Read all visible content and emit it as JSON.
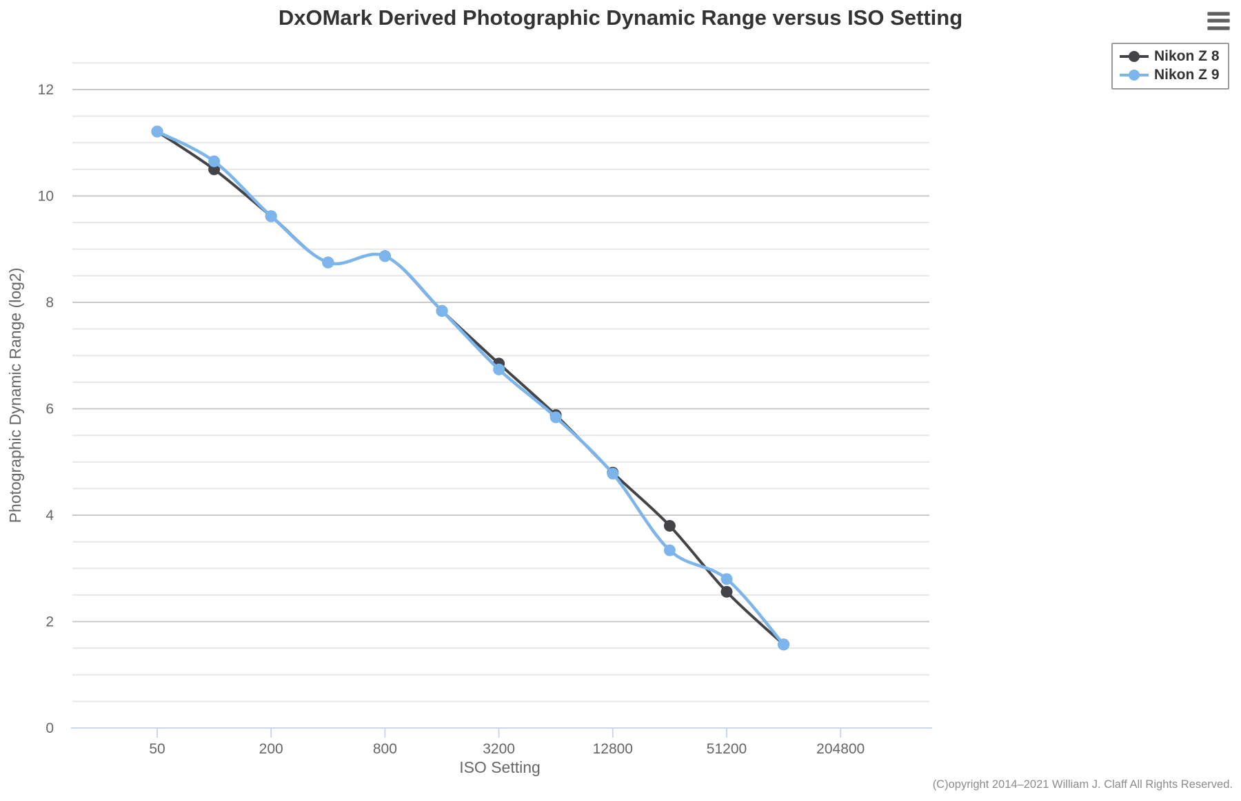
{
  "header": {
    "title": "DxOMark Derived Photographic Dynamic Range versus ISO Setting",
    "menu_icon": "hamburger-icon"
  },
  "chart_data": {
    "type": "line",
    "title": "DxOMark Derived Photographic Dynamic Range versus ISO Setting",
    "xlabel": "ISO Setting",
    "ylabel": "Photographic Dynamic Range (log2)",
    "x_scale": "log4",
    "x": [
      50,
      100,
      200,
      400,
      800,
      1600,
      3200,
      6400,
      12800,
      25600,
      51200,
      102400
    ],
    "series": [
      {
        "name": "Nikon Z 8",
        "color": "#434348",
        "values": [
          11.21,
          10.5,
          9.62,
          8.75,
          8.87,
          7.84,
          6.85,
          5.88,
          4.8,
          3.8,
          2.56,
          1.57
        ]
      },
      {
        "name": "Nikon Z 9",
        "color": "#7cb5ec",
        "values": [
          11.21,
          10.65,
          9.62,
          8.75,
          8.87,
          7.84,
          6.74,
          5.84,
          4.78,
          3.34,
          2.8,
          1.57
        ]
      }
    ],
    "x_ticks": [
      50,
      200,
      800,
      3200,
      12800,
      51200,
      204800
    ],
    "y_ticks": [
      0,
      2,
      4,
      6,
      8,
      10,
      12
    ],
    "ylim": [
      0,
      12.5
    ],
    "minor_grid_step": 0.5,
    "grid": "horizontal-only",
    "legend_position": "top-right",
    "curve": "spline",
    "axis_line_color": "#ccd6eb",
    "major_grid_color": "#c8c8c8",
    "minor_grid_color": "#e7e7e7",
    "label_color": "#666666"
  },
  "footer": {
    "copyright": "(C)opyright 2014–2021 William J. Claff All Rights Reserved."
  }
}
